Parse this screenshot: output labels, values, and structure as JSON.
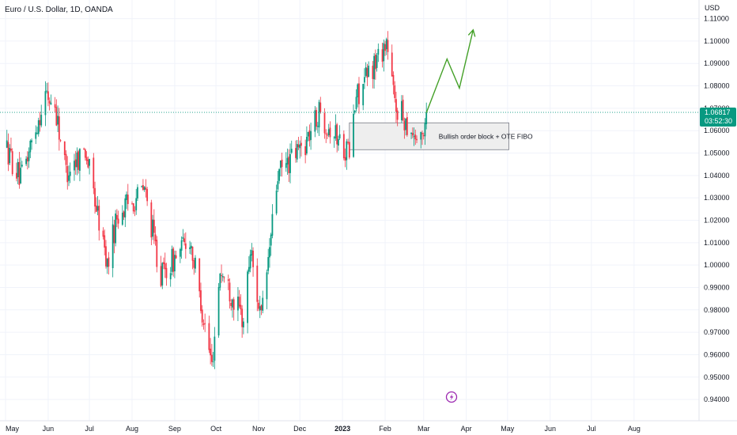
{
  "symbol": "Euro / U.S. Dollar, 1D, OANDA",
  "currency": "USD",
  "last_price": "1.06817",
  "countdown": "03:52:30",
  "annotation": "Bullish order block + OTE FIBO",
  "lightning_icon": "lightning-icon",
  "colors": {
    "up": "#089981",
    "down": "#f23645",
    "projection": "#43a027",
    "price_tag": "#089981",
    "zone_fill": "#eeeeee",
    "zone_border": "#787b86",
    "event_icon": "#9c27b0"
  },
  "x_labels": [
    "May",
    "Jun",
    "Jul",
    "Aug",
    "Sep",
    "Oct",
    "Nov",
    "Dec",
    "2023",
    "Feb",
    "Mar",
    "Apr",
    "May",
    "Jun",
    "Jul",
    "Aug"
  ],
  "chart_data": {
    "type": "candlestick",
    "title": "Euro / U.S. Dollar, 1D, OANDA",
    "ylabel": "USD",
    "y_ticks": [
      "1.11000",
      "1.10000",
      "1.09000",
      "1.08000",
      "1.07000",
      "1.06000",
      "1.05000",
      "1.04000",
      "1.03000",
      "1.02000",
      "1.01000",
      "1.00000",
      "0.99000",
      "0.98000",
      "0.97000",
      "0.96000",
      "0.95000",
      "0.94000"
    ],
    "ylim": [
      0.9365,
      1.1155
    ],
    "x_period": [
      "2022-05-01",
      "2023-08-31"
    ],
    "series_path": [
      [
        "2022-05-01",
        1.053
      ],
      [
        "2022-05-12",
        1.038
      ],
      [
        "2022-05-30",
        1.076
      ],
      [
        "2022-06-06",
        1.071
      ],
      [
        "2022-06-14",
        1.042
      ],
      [
        "2022-06-28",
        1.052
      ],
      [
        "2022-07-14",
        1.0
      ],
      [
        "2022-07-21",
        1.022
      ],
      [
        "2022-08-10",
        1.034
      ],
      [
        "2022-08-22",
        0.995
      ],
      [
        "2022-09-12",
        1.012
      ],
      [
        "2022-09-28",
        0.955
      ],
      [
        "2022-10-04",
        0.998
      ],
      [
        "2022-10-21",
        0.975
      ],
      [
        "2022-10-26",
        1.007
      ],
      [
        "2022-11-03",
        0.975
      ],
      [
        "2022-11-15",
        1.04
      ],
      [
        "2022-12-05",
        1.055
      ],
      [
        "2022-12-15",
        1.068
      ],
      [
        "2023-01-06",
        1.05
      ],
      [
        "2023-01-11",
        1.075
      ],
      [
        "2023-02-02",
        1.1
      ],
      [
        "2023-02-08",
        1.072
      ],
      [
        "2023-02-27",
        1.054
      ],
      [
        "2023-03-03",
        1.068
      ]
    ],
    "last_close": 1.06817,
    "projection": [
      {
        "date": "2023-03-03",
        "value": 1.068
      },
      {
        "date": "2023-03-18",
        "value": 1.092
      },
      {
        "date": "2023-03-27",
        "value": 1.079
      },
      {
        "date": "2023-04-06",
        "value": 1.105
      }
    ],
    "zone": {
      "start": "2023-01-06",
      "end": "2023-05-02",
      "low": 1.0515,
      "high": 1.0635
    },
    "grid": true
  }
}
